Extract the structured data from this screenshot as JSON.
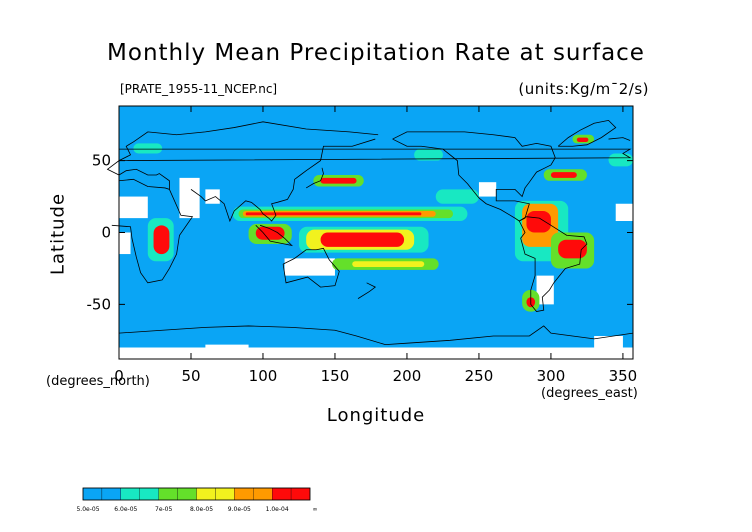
{
  "chart_data": {
    "type": "heatmap",
    "title": "Monthly Mean Precipitation Rate at surface",
    "subtitle": "[PRATE_1955-11_NCEP.nc]",
    "units": "(units:Kg/m¯2/s)",
    "xlabel": "Longitude",
    "ylabel": "Latitude",
    "x_unit_label": "(degrees_east)",
    "y_unit_label": "(degrees_north)",
    "xlim": [
      0,
      357
    ],
    "ylim": [
      -88,
      88
    ],
    "x_ticks": [
      "0",
      "50",
      "100",
      "150",
      "200",
      "250",
      "300",
      "350"
    ],
    "y_ticks": [
      "50",
      "0",
      "-50"
    ],
    "levels": [
      "5.0e-05",
      "6.0e-05",
      "7e-05",
      "8.0e-05",
      "9.0e-05",
      "1.0e-04",
      "∞"
    ],
    "colors": {
      "background": "#0aa5f5",
      "missing": "#ffffff",
      "level1": "#18e8c2",
      "level2": "#64e02a",
      "level3": "#f2f21e",
      "level4": "#ff9a00",
      "level5": "#ff0a0a"
    },
    "colorbar_bands": [
      "#0aa5f5",
      "#0aa5f5",
      "#18e8c2",
      "#18e8c2",
      "#64e02a",
      "#64e02a",
      "#f2f21e",
      "#f2f21e",
      "#ff9a00",
      "#ff9a00",
      "#ff0a0a",
      "#ff0a0a"
    ],
    "regions": [
      {
        "lon": [
          79,
          242
        ],
        "lat": [
          8,
          18
        ],
        "level": 1
      },
      {
        "lon": [
          83,
          232
        ],
        "lat": [
          10,
          16
        ],
        "level": 2
      },
      {
        "lon": [
          86,
          220
        ],
        "lat": [
          11,
          15
        ],
        "level": 4
      },
      {
        "lon": [
          88,
          210
        ],
        "lat": [
          12,
          14
        ],
        "level": 5
      },
      {
        "lon": [
          125,
          215
        ],
        "lat": [
          -14,
          4
        ],
        "level": 1
      },
      {
        "lon": [
          130,
          205
        ],
        "lat": [
          -12,
          2
        ],
        "level": 3
      },
      {
        "lon": [
          140,
          198
        ],
        "lat": [
          -10,
          0
        ],
        "level": 5
      },
      {
        "lon": [
          90,
          120
        ],
        "lat": [
          -8,
          6
        ],
        "level": 2
      },
      {
        "lon": [
          95,
          115
        ],
        "lat": [
          -5,
          4
        ],
        "level": 5
      },
      {
        "lon": [
          148,
          222
        ],
        "lat": [
          -26,
          -18
        ],
        "level": 2
      },
      {
        "lon": [
          162,
          212
        ],
        "lat": [
          -24,
          -20
        ],
        "level": 3
      },
      {
        "lon": [
          135,
          170
        ],
        "lat": [
          32,
          40
        ],
        "level": 2
      },
      {
        "lon": [
          140,
          165
        ],
        "lat": [
          34,
          38
        ],
        "level": 5
      },
      {
        "lon": [
          20,
          38
        ],
        "lat": [
          -20,
          10
        ],
        "level": 1
      },
      {
        "lon": [
          24,
          35
        ],
        "lat": [
          -15,
          5
        ],
        "level": 5
      },
      {
        "lon": [
          275,
          312
        ],
        "lat": [
          -20,
          22
        ],
        "level": 1
      },
      {
        "lon": [
          280,
          305
        ],
        "lat": [
          -10,
          20
        ],
        "level": 4
      },
      {
        "lon": [
          283,
          300
        ],
        "lat": [
          0,
          15
        ],
        "level": 5
      },
      {
        "lon": [
          300,
          330
        ],
        "lat": [
          -25,
          0
        ],
        "level": 2
      },
      {
        "lon": [
          305,
          325
        ],
        "lat": [
          -18,
          -5
        ],
        "level": 5
      },
      {
        "lon": [
          280,
          292
        ],
        "lat": [
          -55,
          -40
        ],
        "level": 2
      },
      {
        "lon": [
          283,
          289
        ],
        "lat": [
          -52,
          -45
        ],
        "level": 5
      },
      {
        "lon": [
          295,
          325
        ],
        "lat": [
          36,
          44
        ],
        "level": 2
      },
      {
        "lon": [
          300,
          318
        ],
        "lat": [
          38,
          42
        ],
        "level": 5
      },
      {
        "lon": [
          315,
          330
        ],
        "lat": [
          62,
          68
        ],
        "level": 2
      },
      {
        "lon": [
          318,
          326
        ],
        "lat": [
          63,
          66
        ],
        "level": 5
      },
      {
        "lon": [
          205,
          225
        ],
        "lat": [
          50,
          58
        ],
        "level": 1
      },
      {
        "lon": [
          220,
          250
        ],
        "lat": [
          20,
          30
        ],
        "level": 1
      },
      {
        "lon": [
          10,
          30
        ],
        "lat": [
          55,
          62
        ],
        "level": 1
      },
      {
        "lon": [
          340,
          357
        ],
        "lat": [
          46,
          55
        ],
        "level": 1
      }
    ],
    "missing_regions": [
      {
        "lon": [
          0,
          20
        ],
        "lat": [
          10,
          25
        ]
      },
      {
        "lon": [
          42,
          56
        ],
        "lat": [
          10,
          38
        ]
      },
      {
        "lon": [
          60,
          70
        ],
        "lat": [
          20,
          30
        ]
      },
      {
        "lon": [
          160,
          175
        ],
        "lat": [
          -25,
          -20
        ]
      },
      {
        "lon": [
          115,
          150
        ],
        "lat": [
          -30,
          -18
        ]
      },
      {
        "lon": [
          250,
          262
        ],
        "lat": [
          25,
          35
        ]
      },
      {
        "lon": [
          290,
          302
        ],
        "lat": [
          -50,
          -30
        ]
      },
      {
        "lon": [
          0,
          8
        ],
        "lat": [
          -15,
          0
        ]
      },
      {
        "lon": [
          345,
          357
        ],
        "lat": [
          8,
          20
        ]
      },
      {
        "lon": [
          0,
          357
        ],
        "lat": [
          -88,
          -80
        ]
      },
      {
        "lon": [
          330,
          350
        ],
        "lat": [
          -80,
          -72
        ]
      },
      {
        "lon": [
          60,
          90
        ],
        "lat": [
          -85,
          -78
        ]
      }
    ]
  }
}
